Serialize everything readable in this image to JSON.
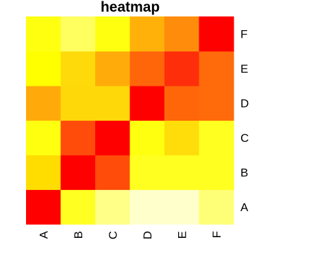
{
  "chart_data": {
    "type": "heatmap",
    "title": "heatmap",
    "xlabel": "",
    "ylabel": "",
    "x_categories": [
      "A",
      "B",
      "C",
      "D",
      "E",
      "F"
    ],
    "y_categories": [
      "A",
      "B",
      "C",
      "D",
      "E",
      "F"
    ],
    "cell_colors": [
      [
        "#FF0000",
        "#FFFF22",
        "#FFFF88",
        "#FFFFCC",
        "#FFFFCC",
        "#FFFF77"
      ],
      [
        "#FFDD00",
        "#FF0000",
        "#FF4C0A",
        "#FFFF20",
        "#FFFF20",
        "#FFFF20"
      ],
      [
        "#FFFF10",
        "#FF4C0A",
        "#FF0000",
        "#FFFF10",
        "#FFDD0A",
        "#FFFF20"
      ],
      [
        "#FFAA0A",
        "#FFD80A",
        "#FFD80A",
        "#FF0000",
        "#FF660A",
        "#FF6A0A"
      ],
      [
        "#FFFF00",
        "#FFDA0A",
        "#FFAC0A",
        "#FF660A",
        "#FF2E0A",
        "#FF6A0A"
      ],
      [
        "#FFFF10",
        "#FFFF60",
        "#FFFF10",
        "#FFB10A",
        "#FF8C0A",
        "#FF0000"
      ]
    ],
    "grid": false,
    "legend": "none"
  }
}
